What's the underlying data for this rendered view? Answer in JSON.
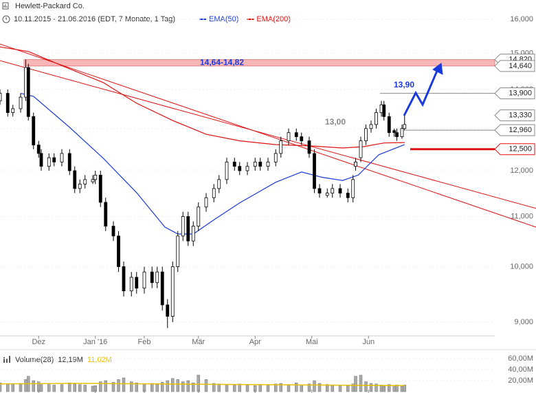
{
  "header": {
    "title": "Hewlett-Packard Co.",
    "range": "10.11.2015 - 21.06.2016 (EDT, 7 Monate, 1 Tag)"
  },
  "chart_data": [
    {
      "type": "candlestick",
      "x": [
        0,
        3,
        5,
        8,
        10,
        11,
        13,
        15,
        16,
        19,
        21,
        24,
        27,
        29,
        31,
        33,
        36,
        37,
        39,
        41,
        44,
        46,
        48,
        51,
        53,
        56,
        59,
        61,
        63,
        65,
        67,
        69,
        71,
        73,
        75,
        77,
        80,
        83,
        85,
        88,
        91,
        93,
        96,
        99,
        101,
        104,
        107,
        109,
        112,
        115,
        117,
        120,
        122,
        124,
        127,
        129,
        132,
        135,
        137,
        138,
        140,
        142,
        144,
        146,
        148,
        149,
        151,
        153,
        154,
        156,
        157
      ],
      "open": [
        13700,
        13900,
        13400,
        13500,
        13800,
        14600,
        13300,
        12600,
        12400,
        12100,
        12300,
        12200,
        12400,
        12000,
        11600,
        11700,
        11750,
        11800,
        11900,
        11300,
        10800,
        10600,
        10000,
        9550,
        9800,
        9600,
        9900,
        9700,
        9900,
        9300,
        9100,
        10000,
        10600,
        11000,
        10500,
        10800,
        11200,
        11400,
        11600,
        11800,
        12200,
        12100,
        12000,
        12100,
        12200,
        12100,
        12200,
        12400,
        12700,
        12900,
        12800,
        12700,
        12400,
        11600,
        11450,
        11500,
        11600,
        11500,
        11400,
        12100,
        12300,
        12700,
        13000,
        13100,
        13400,
        13600,
        13300,
        12950,
        12900,
        12800,
        13000
      ],
      "high": [
        14000,
        14000,
        13600,
        13900,
        14820,
        14700,
        13400,
        12700,
        12500,
        12400,
        12400,
        12500,
        12500,
        12100,
        11800,
        11900,
        11900,
        12000,
        12000,
        11400,
        10900,
        10700,
        10100,
        9900,
        9900,
        10000,
        10000,
        10000,
        10000,
        9400,
        10100,
        10700,
        11100,
        11100,
        10900,
        11300,
        11500,
        11700,
        11900,
        12300,
        12300,
        12200,
        12200,
        12300,
        12300,
        12300,
        12500,
        12800,
        13000,
        13000,
        12900,
        12800,
        12500,
        11700,
        11600,
        11700,
        11700,
        11600,
        11900,
        12300,
        12800,
        13100,
        13200,
        13500,
        13700,
        13700,
        13400,
        13000,
        13000,
        13100,
        13330
      ],
      "low": [
        13600,
        13300,
        13300,
        13400,
        13700,
        13200,
        12500,
        12300,
        12000,
        12000,
        12100,
        12100,
        11900,
        11500,
        11500,
        11600,
        11700,
        11700,
        11200,
        10700,
        10500,
        9900,
        9450,
        9450,
        9500,
        9500,
        9600,
        9600,
        9200,
        8900,
        9000,
        9900,
        10500,
        10400,
        10400,
        10700,
        11100,
        11300,
        11500,
        11700,
        12000,
        11900,
        11900,
        12000,
        12000,
        12000,
        12100,
        12300,
        12600,
        12700,
        12600,
        12300,
        11500,
        11400,
        11400,
        11400,
        11400,
        11300,
        11300,
        12000,
        12200,
        12600,
        12900,
        13000,
        13300,
        13200,
        12800,
        12800,
        12700,
        12750,
        12950
      ],
      "close": [
        13900,
        13400,
        13500,
        13800,
        14600,
        13300,
        12600,
        12400,
        12100,
        12300,
        12200,
        12400,
        12000,
        11600,
        11700,
        11800,
        11800,
        11900,
        11300,
        10800,
        10600,
        10000,
        9550,
        9800,
        9600,
        9900,
        9700,
        9900,
        9300,
        9100,
        10000,
        10600,
        11000,
        10500,
        10800,
        11200,
        11400,
        11600,
        11800,
        12200,
        12100,
        12000,
        12100,
        12200,
        12100,
        12200,
        12400,
        12700,
        12900,
        12800,
        12700,
        12400,
        11600,
        11500,
        11500,
        11600,
        11500,
        11400,
        11800,
        12200,
        12700,
        13000,
        13100,
        13400,
        13600,
        13300,
        12900,
        12900,
        12800,
        13000,
        13100
      ],
      "xlim": [
        0,
        208
      ],
      "ylim": [
        8768,
        16274
      ],
      "log_scale": true,
      "xticks": [
        {
          "value": 15,
          "label": "Dez"
        },
        {
          "value": 37,
          "label": "Jan '16"
        },
        {
          "value": 56,
          "label": "Feb"
        },
        {
          "value": 77,
          "label": "Mär"
        },
        {
          "value": 99,
          "label": "Apr"
        },
        {
          "value": 121,
          "label": "Mai"
        },
        {
          "value": 143,
          "label": "Jun"
        }
      ],
      "yticks": [
        {
          "value": 9000,
          "label": "9,000"
        },
        {
          "value": 10000,
          "label": "10,000"
        },
        {
          "value": 11000,
          "label": "11,000"
        },
        {
          "value": 12000,
          "label": "12,000"
        },
        {
          "value": 13000,
          "label": "13,000"
        },
        {
          "value": 14000,
          "label": "14,000"
        },
        {
          "value": 15000,
          "label": "15,000"
        },
        {
          "value": 16000,
          "label": "16,000"
        }
      ],
      "series": [
        {
          "name": "EMA(50)",
          "color": "#1a3adb",
          "x": [
            8,
            13,
            27,
            40,
            53,
            64,
            69,
            75,
            83,
            93,
            107,
            117,
            125,
            133,
            139,
            147,
            157
          ],
          "values": [
            13900,
            13820,
            13030,
            12290,
            11510,
            10780,
            10640,
            10640,
            10930,
            11290,
            11740,
            11970,
            11850,
            11780,
            11900,
            12370,
            12610
          ]
        },
        {
          "name": "EMA(200)",
          "color": "#e01010",
          "x": [
            0,
            11,
            27,
            40,
            53,
            67,
            80,
            93,
            107,
            120,
            133,
            141,
            149,
            157
          ],
          "values": [
            15180,
            15050,
            14560,
            14190,
            13640,
            13200,
            12860,
            12700,
            12610,
            12580,
            12530,
            12560,
            12650,
            12660
          ]
        }
      ],
      "trendlines": [
        {
          "color": "#e01010",
          "x": [
            0,
            208
          ],
          "values": [
            15265,
            10780
          ]
        },
        {
          "color": "#e01010",
          "x": [
            0,
            208
          ],
          "values": [
            14790,
            11170
          ]
        }
      ],
      "band": {
        "values": [
          14640,
          14820
        ],
        "label": "14,64-14,82",
        "color": "#f6a9a9"
      },
      "levels": [
        {
          "value": 14820,
          "label": "14,820",
          "color": "#888888"
        },
        {
          "value": 14640,
          "label": "14,640",
          "color": "#888888"
        },
        {
          "value": 13900,
          "label": "13,900",
          "color": "#888888"
        },
        {
          "value": 13330,
          "label": "13,330",
          "color": "#888888"
        },
        {
          "value": 12960,
          "label": "12,960",
          "color": "#888888"
        },
        {
          "value": 12500,
          "label": "12,500",
          "color": "#e01010"
        }
      ],
      "annotations": [
        {
          "text": "13,90",
          "color": "#1a3adb"
        },
        {
          "text": "13,00",
          "color": "#888888"
        }
      ]
    },
    {
      "type": "bar",
      "title": "Volume(28)",
      "value_text": "12,19M",
      "color": "#a8a8a8",
      "x": [
        0,
        3,
        5,
        8,
        10,
        11,
        13,
        15,
        16,
        19,
        21,
        24,
        27,
        29,
        31,
        33,
        36,
        37,
        39,
        41,
        44,
        46,
        48,
        51,
        53,
        56,
        59,
        61,
        63,
        65,
        67,
        69,
        71,
        73,
        75,
        77,
        80,
        83,
        85,
        88,
        91,
        93,
        96,
        99,
        101,
        104,
        107,
        109,
        112,
        115,
        117,
        120,
        122,
        124,
        127,
        129,
        132,
        135,
        137,
        138,
        140,
        142,
        144,
        146,
        148,
        149,
        151,
        153,
        154,
        156,
        157
      ],
      "values": [
        16,
        14,
        13,
        15,
        22,
        28,
        20,
        18,
        14,
        15,
        12,
        13,
        16,
        14,
        13,
        12,
        10,
        11,
        18,
        20,
        17,
        22,
        25,
        18,
        16,
        14,
        15,
        13,
        17,
        20,
        24,
        22,
        18,
        20,
        16,
        30,
        22,
        15,
        14,
        13,
        12,
        14,
        12,
        11,
        13,
        12,
        14,
        15,
        13,
        16,
        12,
        14,
        20,
        15,
        13,
        12,
        12,
        11,
        14,
        28,
        30,
        18,
        15,
        14,
        12,
        10,
        13,
        11,
        12,
        10,
        12
      ],
      "xlim": [
        0,
        208
      ],
      "ylim": [
        0,
        70
      ],
      "yticks": [
        {
          "value": 20,
          "label": "20,00M"
        },
        {
          "value": 40,
          "label": "40,00M"
        },
        {
          "value": 60,
          "label": "60,00M"
        }
      ],
      "series": [
        {
          "name": "11,02M",
          "color": "#e8c000",
          "x": [
            0,
            30,
            60,
            90,
            120,
            157
          ],
          "values": [
            14,
            15,
            14,
            13,
            12,
            11.02
          ]
        }
      ]
    }
  ]
}
